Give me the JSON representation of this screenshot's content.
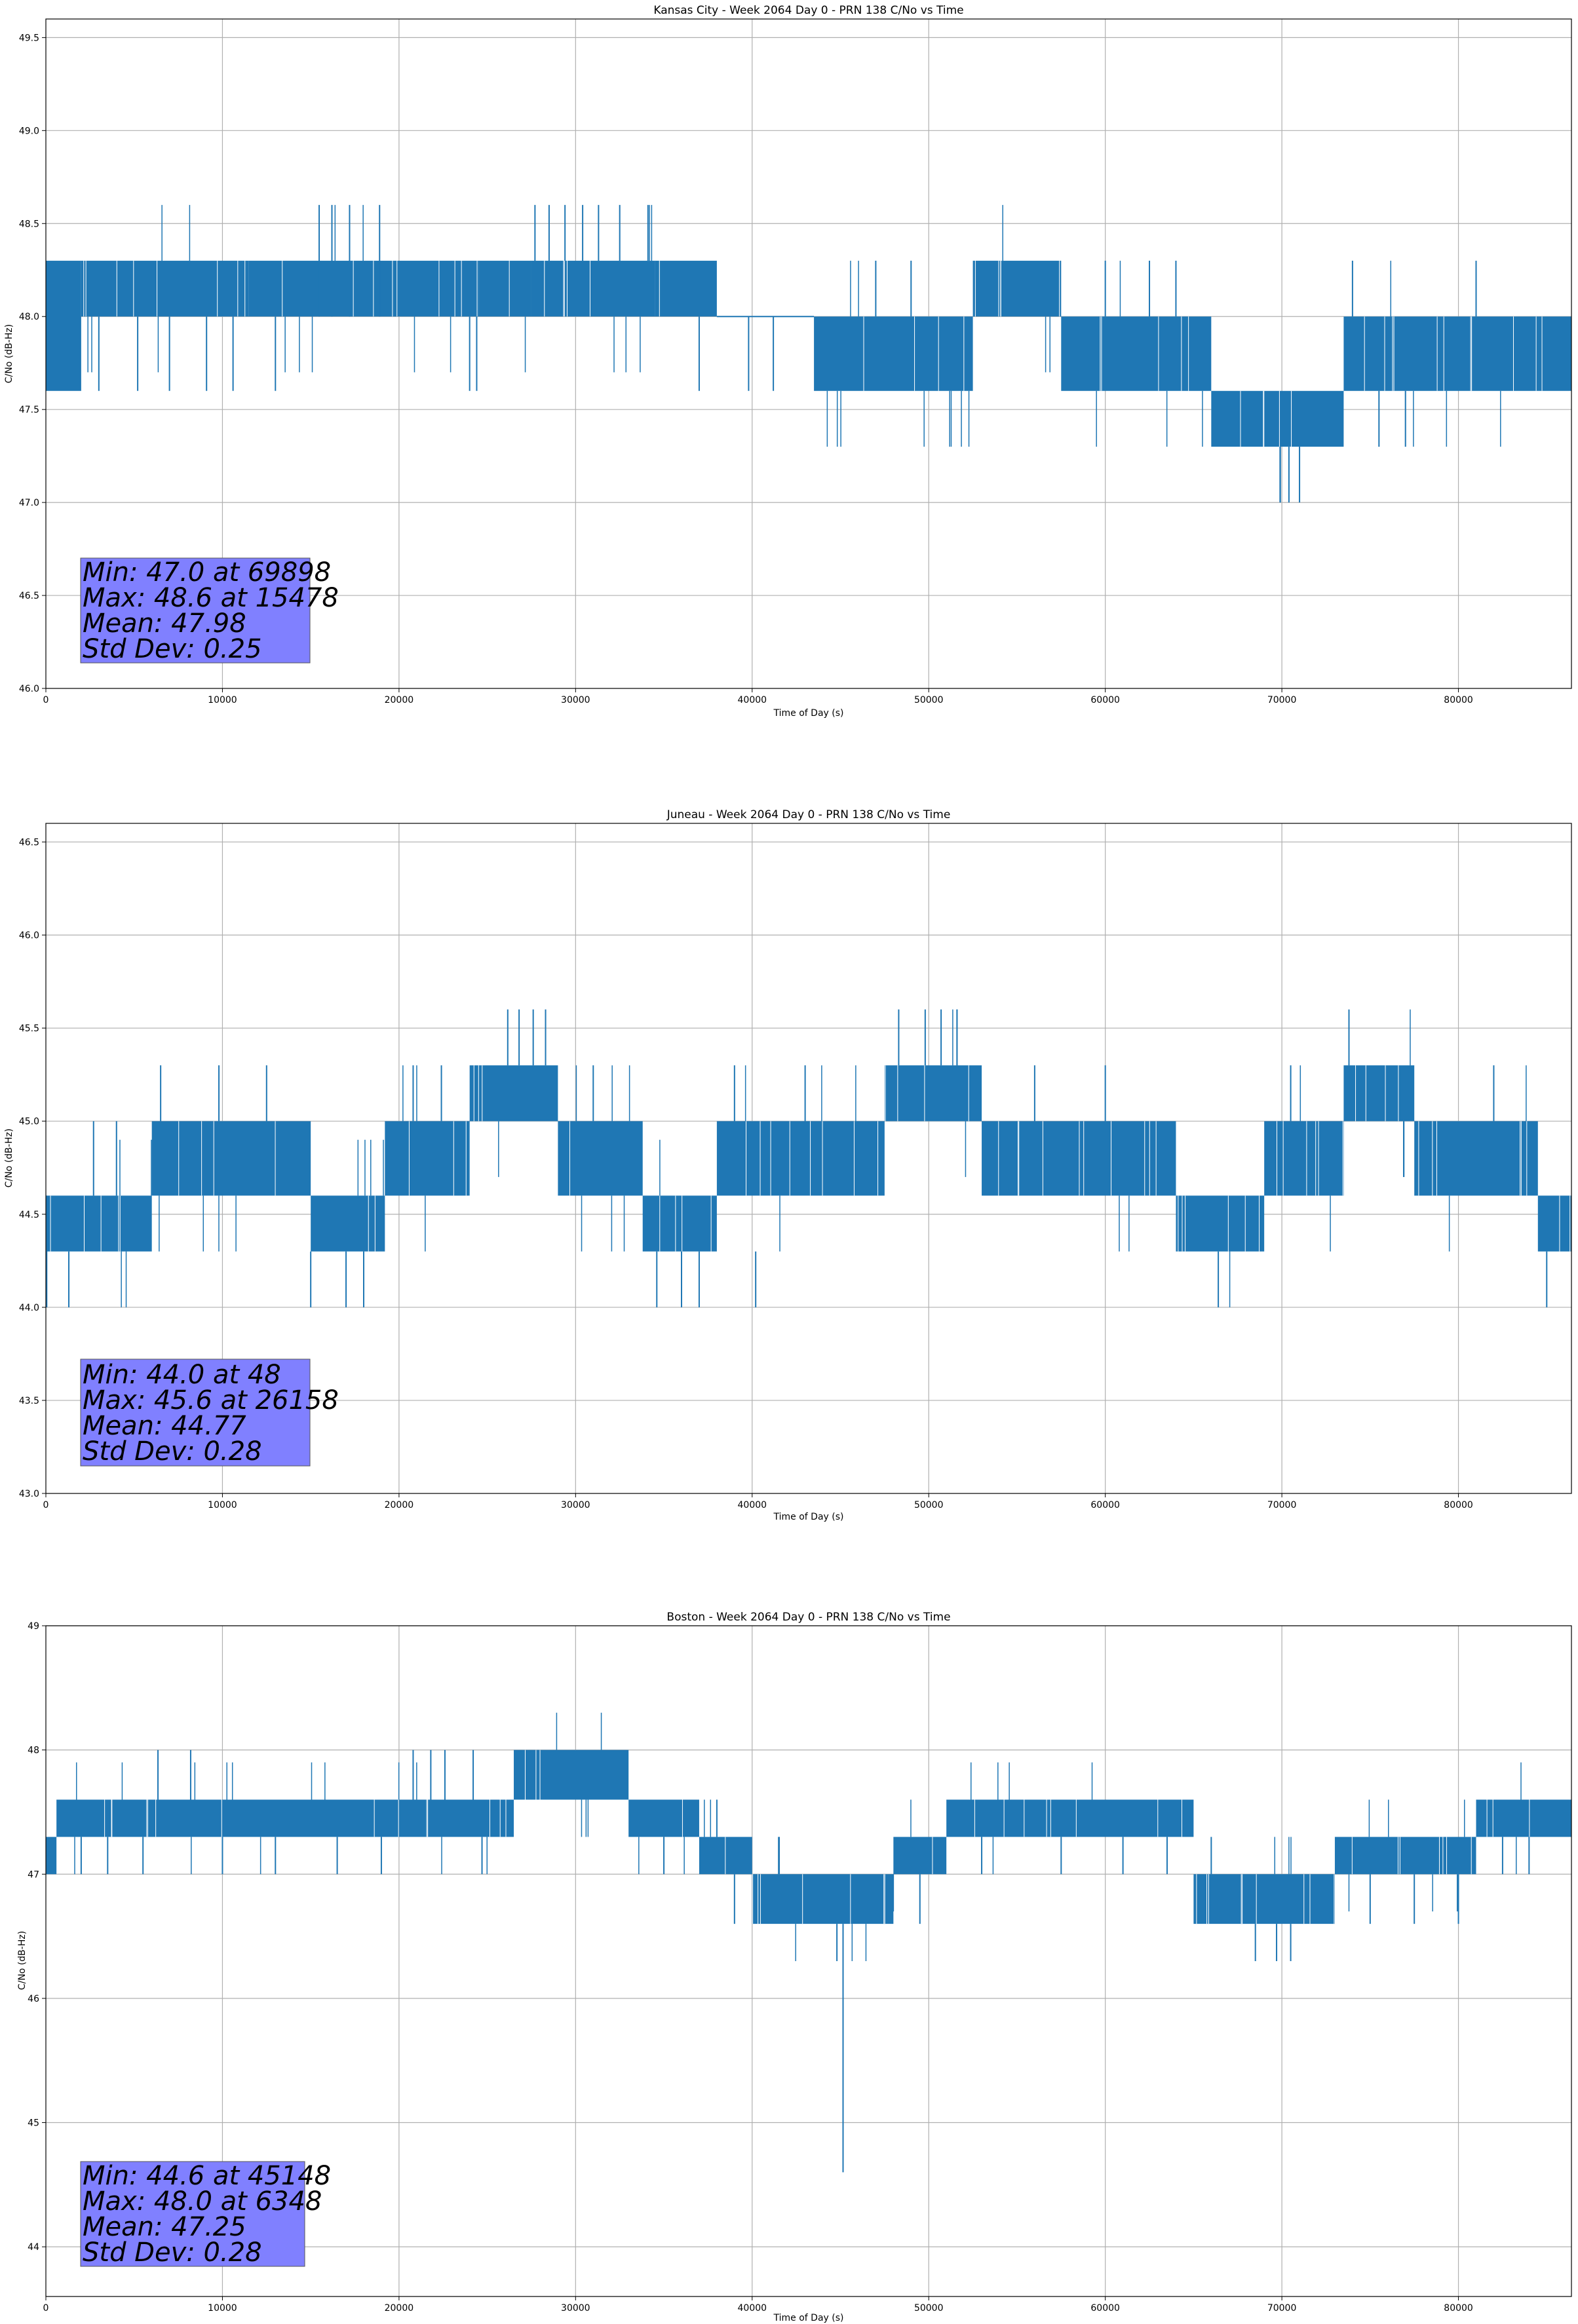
{
  "chart_data": [
    {
      "type": "line",
      "title": "Kansas City - Week 2064 Day 0 - PRN 138 C/No vs Time",
      "xlabel": "Time of Day (s)",
      "ylabel": "C/No (dB-Hz)",
      "xlim": [
        0,
        86400
      ],
      "ylim": [
        46.0,
        49.6
      ],
      "xticks": [
        0,
        10000,
        20000,
        30000,
        40000,
        50000,
        60000,
        70000,
        80000
      ],
      "yticks": [
        46.0,
        46.5,
        47.0,
        47.5,
        48.0,
        48.5,
        49.0,
        49.5
      ],
      "ytick_labels": [
        "46.0",
        "46.5",
        "47.0",
        "47.5",
        "48.0",
        "48.5",
        "49.0",
        "49.5"
      ],
      "grid": true,
      "color": "#1f77b4",
      "stats_lines": [
        "Min: 47.0 at 69898",
        "Max: 48.6 at 15478",
        "Mean: 47.98",
        "Std Dev: 0.25"
      ],
      "segments": [
        {
          "x0": 0,
          "x1": 2000,
          "low": 47.6,
          "high": 48.3
        },
        {
          "x0": 2000,
          "x1": 11500,
          "low": 48.0,
          "high": 48.3
        },
        {
          "x0": 11500,
          "x1": 24500,
          "low": 48.0,
          "high": 48.3
        },
        {
          "x0": 24500,
          "x1": 27500,
          "low": 48.0,
          "high": 48.3
        },
        {
          "x0": 27500,
          "x1": 34500,
          "low": 48.0,
          "high": 48.3
        },
        {
          "x0": 34500,
          "x1": 38000,
          "low": 48.0,
          "high": 48.3
        },
        {
          "x0": 38000,
          "x1": 43500,
          "low": 48.0,
          "high": 48.0
        },
        {
          "x0": 43500,
          "x1": 52500,
          "low": 47.6,
          "high": 48.0
        },
        {
          "x0": 52500,
          "x1": 57500,
          "low": 48.0,
          "high": 48.3
        },
        {
          "x0": 57500,
          "x1": 66000,
          "low": 47.6,
          "high": 48.0
        },
        {
          "x0": 66000,
          "x1": 73500,
          "low": 47.3,
          "high": 47.6
        },
        {
          "x0": 73500,
          "x1": 86400,
          "low": 47.6,
          "high": 48.0
        }
      ],
      "spikes": [
        {
          "x": 15478,
          "low": 48.0,
          "high": 48.6
        },
        {
          "x": 16200,
          "low": 48.0,
          "high": 48.6
        },
        {
          "x": 17200,
          "low": 48.0,
          "high": 48.6
        },
        {
          "x": 18900,
          "low": 48.0,
          "high": 48.6
        },
        {
          "x": 27700,
          "low": 48.3,
          "high": 48.6
        },
        {
          "x": 28500,
          "low": 48.3,
          "high": 48.6
        },
        {
          "x": 29400,
          "low": 48.3,
          "high": 48.6
        },
        {
          "x": 30400,
          "low": 48.3,
          "high": 48.6
        },
        {
          "x": 31300,
          "low": 48.3,
          "high": 48.6
        },
        {
          "x": 32500,
          "low": 48.3,
          "high": 48.6
        },
        {
          "x": 34100,
          "low": 48.3,
          "high": 48.6
        },
        {
          "x": 69898,
          "low": 47.0,
          "high": 47.3
        },
        {
          "x": 70400,
          "low": 47.0,
          "high": 47.3
        },
        {
          "x": 71000,
          "low": 47.0,
          "high": 47.3
        },
        {
          "x": 75500,
          "low": 47.3,
          "high": 47.6
        },
        {
          "x": 77000,
          "low": 47.3,
          "high": 47.6
        },
        {
          "x": 74000,
          "low": 48.0,
          "high": 48.3
        },
        {
          "x": 81000,
          "low": 48.0,
          "high": 48.3
        },
        {
          "x": 24000,
          "low": 47.6,
          "high": 48.0
        },
        {
          "x": 24400,
          "low": 47.6,
          "high": 48.0
        },
        {
          "x": 3000,
          "low": 47.6,
          "high": 48.0
        },
        {
          "x": 5200,
          "low": 47.6,
          "high": 48.0
        },
        {
          "x": 7000,
          "low": 47.6,
          "high": 48.0
        },
        {
          "x": 9100,
          "low": 47.6,
          "high": 48.0
        },
        {
          "x": 10600,
          "low": 47.6,
          "high": 48.0
        },
        {
          "x": 13000,
          "low": 47.6,
          "high": 48.0
        },
        {
          "x": 37000,
          "low": 47.6,
          "high": 48.0
        },
        {
          "x": 39800,
          "low": 47.6,
          "high": 48.0
        },
        {
          "x": 41200,
          "low": 47.6,
          "high": 48.0
        },
        {
          "x": 47000,
          "low": 48.0,
          "high": 48.3
        },
        {
          "x": 49000,
          "low": 48.0,
          "high": 48.3
        },
        {
          "x": 60000,
          "low": 48.0,
          "high": 48.3
        },
        {
          "x": 62500,
          "low": 48.0,
          "high": 48.3
        },
        {
          "x": 64000,
          "low": 48.0,
          "high": 48.3
        }
      ]
    },
    {
      "type": "line",
      "title": "Juneau - Week 2064 Day 0 - PRN 138 C/No vs Time",
      "xlabel": "Time of Day (s)",
      "ylabel": "C/No (dB-Hz)",
      "xlim": [
        0,
        86400
      ],
      "ylim": [
        43.0,
        46.6
      ],
      "xticks": [
        0,
        10000,
        20000,
        30000,
        40000,
        50000,
        60000,
        70000,
        80000
      ],
      "yticks": [
        43.0,
        43.5,
        44.0,
        44.5,
        45.0,
        45.5,
        46.0,
        46.5
      ],
      "ytick_labels": [
        "43.0",
        "43.5",
        "44.0",
        "44.5",
        "45.0",
        "45.5",
        "46.0",
        "46.5"
      ],
      "grid": true,
      "color": "#1f77b4",
      "stats_lines": [
        "Min: 44.0 at 48",
        "Max: 45.6 at 26158",
        "Mean: 44.77",
        "Std Dev: 0.28"
      ],
      "segments": [
        {
          "x0": 0,
          "x1": 6000,
          "low": 44.3,
          "high": 44.6
        },
        {
          "x0": 6000,
          "x1": 15000,
          "low": 44.6,
          "high": 45.0
        },
        {
          "x0": 15000,
          "x1": 19200,
          "low": 44.3,
          "high": 44.6
        },
        {
          "x0": 19200,
          "x1": 24000,
          "low": 44.6,
          "high": 45.0
        },
        {
          "x0": 24000,
          "x1": 29000,
          "low": 45.0,
          "high": 45.3
        },
        {
          "x0": 29000,
          "x1": 33800,
          "low": 44.6,
          "high": 45.0
        },
        {
          "x0": 33800,
          "x1": 38000,
          "low": 44.3,
          "high": 44.6
        },
        {
          "x0": 38000,
          "x1": 47500,
          "low": 44.6,
          "high": 45.0
        },
        {
          "x0": 47500,
          "x1": 53000,
          "low": 45.0,
          "high": 45.3
        },
        {
          "x0": 53000,
          "x1": 64000,
          "low": 44.6,
          "high": 45.0
        },
        {
          "x0": 64000,
          "x1": 69000,
          "low": 44.3,
          "high": 44.6
        },
        {
          "x0": 69000,
          "x1": 73500,
          "low": 44.6,
          "high": 45.0
        },
        {
          "x0": 73500,
          "x1": 77500,
          "low": 45.0,
          "high": 45.3
        },
        {
          "x0": 77500,
          "x1": 84500,
          "low": 44.6,
          "high": 45.0
        },
        {
          "x0": 84500,
          "x1": 86400,
          "low": 44.3,
          "high": 44.6
        }
      ],
      "spikes": [
        {
          "x": 48,
          "low": 44.0,
          "high": 44.6
        },
        {
          "x": 1300,
          "low": 44.0,
          "high": 44.3
        },
        {
          "x": 26158,
          "low": 45.3,
          "high": 45.6
        },
        {
          "x": 26800,
          "low": 45.3,
          "high": 45.6
        },
        {
          "x": 27600,
          "low": 45.3,
          "high": 45.6
        },
        {
          "x": 28300,
          "low": 45.3,
          "high": 45.6
        },
        {
          "x": 48300,
          "low": 45.3,
          "high": 45.6
        },
        {
          "x": 49800,
          "low": 45.3,
          "high": 45.6
        },
        {
          "x": 50700,
          "low": 45.3,
          "high": 45.6
        },
        {
          "x": 51600,
          "low": 45.3,
          "high": 45.6
        },
        {
          "x": 73800,
          "low": 45.3,
          "high": 45.6
        },
        {
          "x": 15000,
          "low": 44.0,
          "high": 44.3
        },
        {
          "x": 17000,
          "low": 44.0,
          "high": 44.3
        },
        {
          "x": 18000,
          "low": 44.0,
          "high": 44.3
        },
        {
          "x": 34600,
          "low": 44.0,
          "high": 44.3
        },
        {
          "x": 36000,
          "low": 44.0,
          "high": 44.3
        },
        {
          "x": 37000,
          "low": 44.0,
          "high": 44.3
        },
        {
          "x": 40200,
          "low": 44.0,
          "high": 44.3
        },
        {
          "x": 66400,
          "low": 44.0,
          "high": 44.3
        },
        {
          "x": 85000,
          "low": 44.0,
          "high": 44.3
        },
        {
          "x": 6500,
          "low": 45.0,
          "high": 45.3
        },
        {
          "x": 9800,
          "low": 45.0,
          "high": 45.3
        },
        {
          "x": 12500,
          "low": 45.0,
          "high": 45.3
        },
        {
          "x": 20800,
          "low": 45.0,
          "high": 45.3
        },
        {
          "x": 22400,
          "low": 45.0,
          "high": 45.3
        },
        {
          "x": 31000,
          "low": 45.0,
          "high": 45.3
        },
        {
          "x": 39000,
          "low": 45.0,
          "high": 45.3
        },
        {
          "x": 43000,
          "low": 45.0,
          "high": 45.3
        },
        {
          "x": 56000,
          "low": 45.0,
          "high": 45.3
        },
        {
          "x": 60000,
          "low": 45.0,
          "high": 45.3
        },
        {
          "x": 70500,
          "low": 45.0,
          "high": 45.3
        },
        {
          "x": 82000,
          "low": 45.0,
          "high": 45.3
        },
        {
          "x": 4000,
          "low": 44.6,
          "high": 45.0
        },
        {
          "x": 2700,
          "low": 44.6,
          "high": 45.0
        }
      ]
    },
    {
      "type": "line",
      "title": "Boston - Week 2064 Day 0 - PRN 138 C/No vs Time",
      "xlabel": "Time of Day (s)",
      "ylabel": "C/No (dB-Hz)",
      "xlim": [
        0,
        86400
      ],
      "ylim": [
        43.6,
        49.0
      ],
      "xticks": [
        0,
        10000,
        20000,
        30000,
        40000,
        50000,
        60000,
        70000,
        80000
      ],
      "yticks": [
        44,
        45,
        46,
        47,
        48,
        49
      ],
      "ytick_labels": [
        "44",
        "45",
        "46",
        "47",
        "48",
        "49"
      ],
      "grid": true,
      "color": "#1f77b4",
      "stats_lines": [
        "Min: 44.6 at 45148",
        "Max: 48.0 at 6348",
        "Mean: 47.25",
        "Std Dev: 0.28"
      ],
      "segments": [
        {
          "x0": 0,
          "x1": 600,
          "low": 47.0,
          "high": 47.3
        },
        {
          "x0": 600,
          "x1": 20000,
          "low": 47.3,
          "high": 47.6
        },
        {
          "x0": 20000,
          "x1": 26500,
          "low": 47.3,
          "high": 47.6
        },
        {
          "x0": 26500,
          "x1": 33000,
          "low": 47.6,
          "high": 48.0
        },
        {
          "x0": 33000,
          "x1": 37000,
          "low": 47.3,
          "high": 47.6
        },
        {
          "x0": 37000,
          "x1": 40000,
          "low": 47.0,
          "high": 47.3
        },
        {
          "x0": 40000,
          "x1": 48000,
          "low": 46.6,
          "high": 47.0
        },
        {
          "x0": 48000,
          "x1": 51000,
          "low": 47.0,
          "high": 47.3
        },
        {
          "x0": 51000,
          "x1": 65000,
          "low": 47.3,
          "high": 47.6
        },
        {
          "x0": 65000,
          "x1": 73000,
          "low": 46.6,
          "high": 47.0
        },
        {
          "x0": 73000,
          "x1": 81000,
          "low": 47.0,
          "high": 47.3
        },
        {
          "x0": 81000,
          "x1": 86400,
          "low": 47.3,
          "high": 47.6
        }
      ],
      "spikes": [
        {
          "x": 45148,
          "low": 44.6,
          "high": 46.6
        },
        {
          "x": 44800,
          "low": 46.3,
          "high": 46.6
        },
        {
          "x": 6348,
          "low": 47.6,
          "high": 48.0
        },
        {
          "x": 8200,
          "low": 47.6,
          "high": 48.0
        },
        {
          "x": 20800,
          "low": 47.6,
          "high": 48.0
        },
        {
          "x": 21800,
          "low": 47.6,
          "high": 48.0
        },
        {
          "x": 22600,
          "low": 47.6,
          "high": 48.0
        },
        {
          "x": 24200,
          "low": 47.6,
          "high": 48.0
        },
        {
          "x": 38000,
          "low": 47.3,
          "high": 47.6
        },
        {
          "x": 41500,
          "low": 47.0,
          "high": 47.3
        },
        {
          "x": 68500,
          "low": 46.3,
          "high": 46.6
        },
        {
          "x": 69700,
          "low": 46.3,
          "high": 46.6
        },
        {
          "x": 70500,
          "low": 46.3,
          "high": 46.6
        },
        {
          "x": 80000,
          "low": 46.6,
          "high": 47.0
        },
        {
          "x": 2000,
          "low": 47.0,
          "high": 47.3
        },
        {
          "x": 3500,
          "low": 47.0,
          "high": 47.3
        },
        {
          "x": 5500,
          "low": 47.0,
          "high": 47.3
        },
        {
          "x": 10000,
          "low": 47.0,
          "high": 47.3
        },
        {
          "x": 13000,
          "low": 47.0,
          "high": 47.3
        },
        {
          "x": 16500,
          "low": 47.0,
          "high": 47.3
        },
        {
          "x": 19000,
          "low": 47.0,
          "high": 47.3
        },
        {
          "x": 24700,
          "low": 47.0,
          "high": 47.3
        },
        {
          "x": 35000,
          "low": 47.0,
          "high": 47.3
        },
        {
          "x": 39000,
          "low": 46.6,
          "high": 47.0
        },
        {
          "x": 49500,
          "low": 46.6,
          "high": 47.0
        },
        {
          "x": 53000,
          "low": 47.0,
          "high": 47.3
        },
        {
          "x": 57500,
          "low": 47.0,
          "high": 47.3
        },
        {
          "x": 61000,
          "low": 47.0,
          "high": 47.3
        },
        {
          "x": 63500,
          "low": 47.0,
          "high": 47.3
        },
        {
          "x": 66000,
          "low": 47.0,
          "high": 47.3
        },
        {
          "x": 75000,
          "low": 46.6,
          "high": 47.0
        },
        {
          "x": 77500,
          "low": 46.6,
          "high": 47.0
        },
        {
          "x": 84000,
          "low": 47.0,
          "high": 47.3
        },
        {
          "x": 82500,
          "low": 47.0,
          "high": 47.3
        }
      ]
    }
  ]
}
